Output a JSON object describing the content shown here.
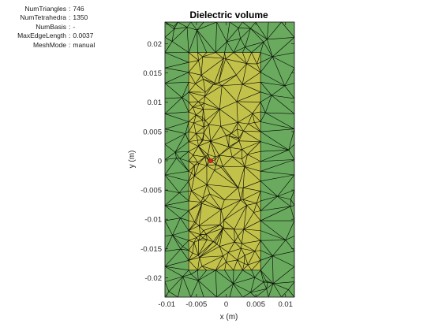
{
  "mesh_info": [
    {
      "key": "NumTriangles",
      "value": "746"
    },
    {
      "key": "NumTetrahedra",
      "value": "1350"
    },
    {
      "key": "NumBasis",
      "value": "-"
    },
    {
      "key": "MaxEdgeLength",
      "value": "0.0037"
    },
    {
      "key": "MeshMode",
      "value": "manual"
    }
  ],
  "chart_data": {
    "type": "mesh",
    "title": "Dielectric volume",
    "xlabel": "x (m)",
    "ylabel": "y (m)",
    "xlim": [
      -0.0103,
      0.0115
    ],
    "ylim": [
      -0.0233,
      0.0237
    ],
    "xticks": [
      -0.01,
      -0.005,
      0,
      0.005,
      0.01
    ],
    "xtick_labels": [
      "-0.01",
      "-0.005",
      "0",
      "0.005",
      "0.01"
    ],
    "yticks": [
      -0.02,
      -0.015,
      -0.01,
      -0.005,
      0,
      0.005,
      0.01,
      0.015,
      0.02
    ],
    "ytick_labels": [
      "-0.02",
      "-0.015",
      "-0.01",
      "-0.005",
      "0",
      "0.005",
      "0.01",
      "0.015",
      "0.02"
    ],
    "regions": [
      {
        "name": "substrate",
        "x": [
          -0.0103,
          0.0115
        ],
        "y": [
          -0.0233,
          0.0237
        ],
        "color": "#6aaa5e"
      },
      {
        "name": "patch",
        "x": [
          -0.0063,
          0.0058
        ],
        "y": [
          -0.0187,
          0.0185
        ],
        "color": "#c2c14a"
      }
    ],
    "feed_point": {
      "x": -0.0026,
      "y": 0.0,
      "color": "#d62020"
    },
    "mesh_color": "#000000"
  },
  "colors": {
    "axes": "#262626",
    "background": "#ffffff"
  }
}
